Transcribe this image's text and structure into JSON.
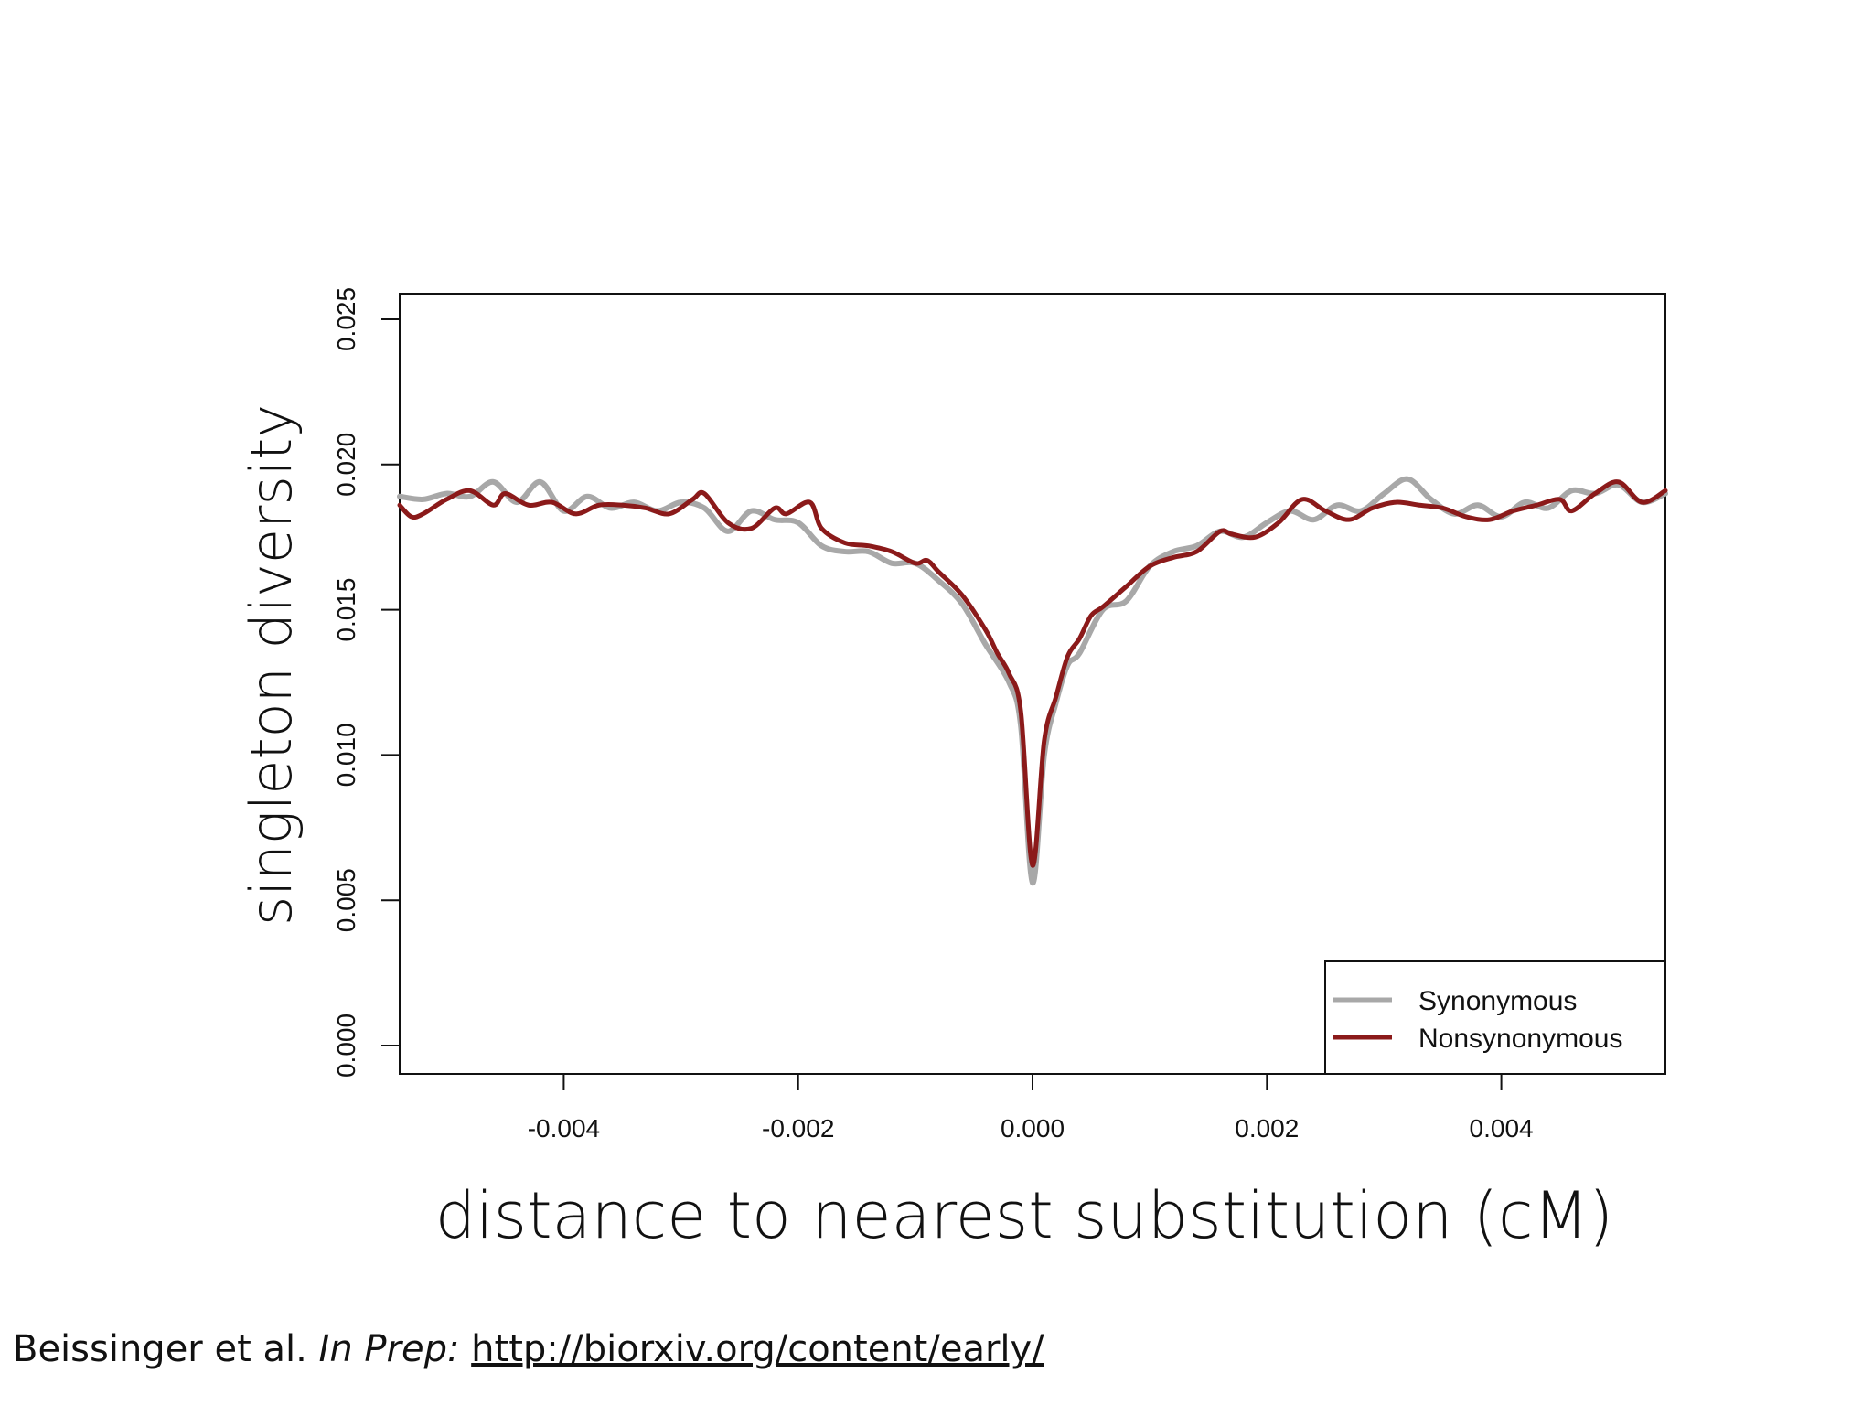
{
  "chart_data": {
    "type": "line",
    "xlabel": "distance to nearest substitution (cM)",
    "ylabel": "singleton diversity",
    "xlim": [
      -0.0054,
      0.0054
    ],
    "ylim": [
      0.0,
      0.025
    ],
    "x_ticks": [
      "-0.004",
      "-0.002",
      "0.000",
      "0.002",
      "0.004"
    ],
    "y_ticks": [
      "0.000",
      "0.005",
      "0.010",
      "0.015",
      "0.020",
      "0.025"
    ],
    "legend_position": "bottom-right",
    "grid": false,
    "series": [
      {
        "name": "Synonymous",
        "color": "#a8a8a8",
        "points": [
          [
            -0.0054,
            0.0189
          ],
          [
            -0.0052,
            0.0188
          ],
          [
            -0.005,
            0.019
          ],
          [
            -0.0048,
            0.0189
          ],
          [
            -0.0046,
            0.0194
          ],
          [
            -0.0044,
            0.0187
          ],
          [
            -0.0042,
            0.0194
          ],
          [
            -0.004,
            0.0184
          ],
          [
            -0.0038,
            0.0189
          ],
          [
            -0.0036,
            0.0185
          ],
          [
            -0.0034,
            0.0187
          ],
          [
            -0.0032,
            0.0184
          ],
          [
            -0.003,
            0.0187
          ],
          [
            -0.0028,
            0.0185
          ],
          [
            -0.0026,
            0.0177
          ],
          [
            -0.0024,
            0.0184
          ],
          [
            -0.0022,
            0.0181
          ],
          [
            -0.002,
            0.018
          ],
          [
            -0.0018,
            0.0172
          ],
          [
            -0.0016,
            0.017
          ],
          [
            -0.0014,
            0.017
          ],
          [
            -0.0012,
            0.0166
          ],
          [
            -0.001,
            0.0166
          ],
          [
            -0.0008,
            0.016
          ],
          [
            -0.0006,
            0.0152
          ],
          [
            -0.0004,
            0.0138
          ],
          [
            -0.0002,
            0.0125
          ],
          [
            -0.0001,
            0.011
          ],
          [
            0.0,
            0.0056
          ],
          [
            0.0001,
            0.01
          ],
          [
            0.0002,
            0.0118
          ],
          [
            0.0003,
            0.0131
          ],
          [
            0.0004,
            0.0135
          ],
          [
            0.0006,
            0.015
          ],
          [
            0.0008,
            0.0153
          ],
          [
            0.001,
            0.0165
          ],
          [
            0.0012,
            0.017
          ],
          [
            0.0014,
            0.0172
          ],
          [
            0.0016,
            0.0177
          ],
          [
            0.0018,
            0.0175
          ],
          [
            0.002,
            0.018
          ],
          [
            0.0022,
            0.0184
          ],
          [
            0.0024,
            0.0181
          ],
          [
            0.0026,
            0.0186
          ],
          [
            0.0028,
            0.0184
          ],
          [
            0.003,
            0.019
          ],
          [
            0.0032,
            0.0195
          ],
          [
            0.0034,
            0.0188
          ],
          [
            0.0036,
            0.0183
          ],
          [
            0.0038,
            0.0186
          ],
          [
            0.004,
            0.0182
          ],
          [
            0.0042,
            0.0187
          ],
          [
            0.0044,
            0.0185
          ],
          [
            0.0046,
            0.0191
          ],
          [
            0.0048,
            0.019
          ],
          [
            0.005,
            0.0193
          ],
          [
            0.0052,
            0.0187
          ],
          [
            0.0054,
            0.019
          ]
        ]
      },
      {
        "name": "Nonsynonymous",
        "color": "#8b1a1a",
        "points": [
          [
            -0.0054,
            0.0186
          ],
          [
            -0.0053,
            0.0182
          ],
          [
            -0.0052,
            0.0183
          ],
          [
            -0.005,
            0.0188
          ],
          [
            -0.0048,
            0.0191
          ],
          [
            -0.0046,
            0.0186
          ],
          [
            -0.0045,
            0.019
          ],
          [
            -0.0043,
            0.0186
          ],
          [
            -0.0041,
            0.0187
          ],
          [
            -0.0039,
            0.0183
          ],
          [
            -0.0037,
            0.0186
          ],
          [
            -0.0035,
            0.0186
          ],
          [
            -0.0033,
            0.0185
          ],
          [
            -0.0031,
            0.0183
          ],
          [
            -0.0029,
            0.0188
          ],
          [
            -0.0028,
            0.019
          ],
          [
            -0.0026,
            0.018
          ],
          [
            -0.0024,
            0.0178
          ],
          [
            -0.0022,
            0.0185
          ],
          [
            -0.0021,
            0.0183
          ],
          [
            -0.0019,
            0.0187
          ],
          [
            -0.0018,
            0.0178
          ],
          [
            -0.0016,
            0.0173
          ],
          [
            -0.0014,
            0.0172
          ],
          [
            -0.0012,
            0.017
          ],
          [
            -0.001,
            0.0166
          ],
          [
            -0.0009,
            0.0167
          ],
          [
            -0.0008,
            0.0163
          ],
          [
            -0.0006,
            0.0155
          ],
          [
            -0.0004,
            0.0143
          ],
          [
            -0.0003,
            0.0135
          ],
          [
            -0.0002,
            0.0128
          ],
          [
            -0.0001,
            0.0115
          ],
          [
            0.0,
            0.0062
          ],
          [
            0.0001,
            0.0105
          ],
          [
            0.0002,
            0.012
          ],
          [
            0.0003,
            0.0134
          ],
          [
            0.0004,
            0.014
          ],
          [
            0.0005,
            0.0148
          ],
          [
            0.0006,
            0.0151
          ],
          [
            0.0008,
            0.0158
          ],
          [
            0.001,
            0.0165
          ],
          [
            0.0012,
            0.0168
          ],
          [
            0.0014,
            0.017
          ],
          [
            0.0016,
            0.0177
          ],
          [
            0.0017,
            0.0176
          ],
          [
            0.0019,
            0.0175
          ],
          [
            0.0021,
            0.018
          ],
          [
            0.0023,
            0.0188
          ],
          [
            0.0025,
            0.0184
          ],
          [
            0.0027,
            0.0181
          ],
          [
            0.0029,
            0.0185
          ],
          [
            0.0031,
            0.0187
          ],
          [
            0.0033,
            0.0186
          ],
          [
            0.0035,
            0.0185
          ],
          [
            0.0037,
            0.0182
          ],
          [
            0.0039,
            0.0181
          ],
          [
            0.0041,
            0.0184
          ],
          [
            0.0043,
            0.0186
          ],
          [
            0.0045,
            0.0188
          ],
          [
            0.0046,
            0.0184
          ],
          [
            0.0048,
            0.019
          ],
          [
            0.005,
            0.0194
          ],
          [
            0.0052,
            0.0187
          ],
          [
            0.0054,
            0.0191
          ]
        ]
      }
    ]
  },
  "citation": {
    "authors": "Beissinger et al.",
    "status": "In Prep:",
    "url": "http://biorxiv.org/content/early/"
  }
}
